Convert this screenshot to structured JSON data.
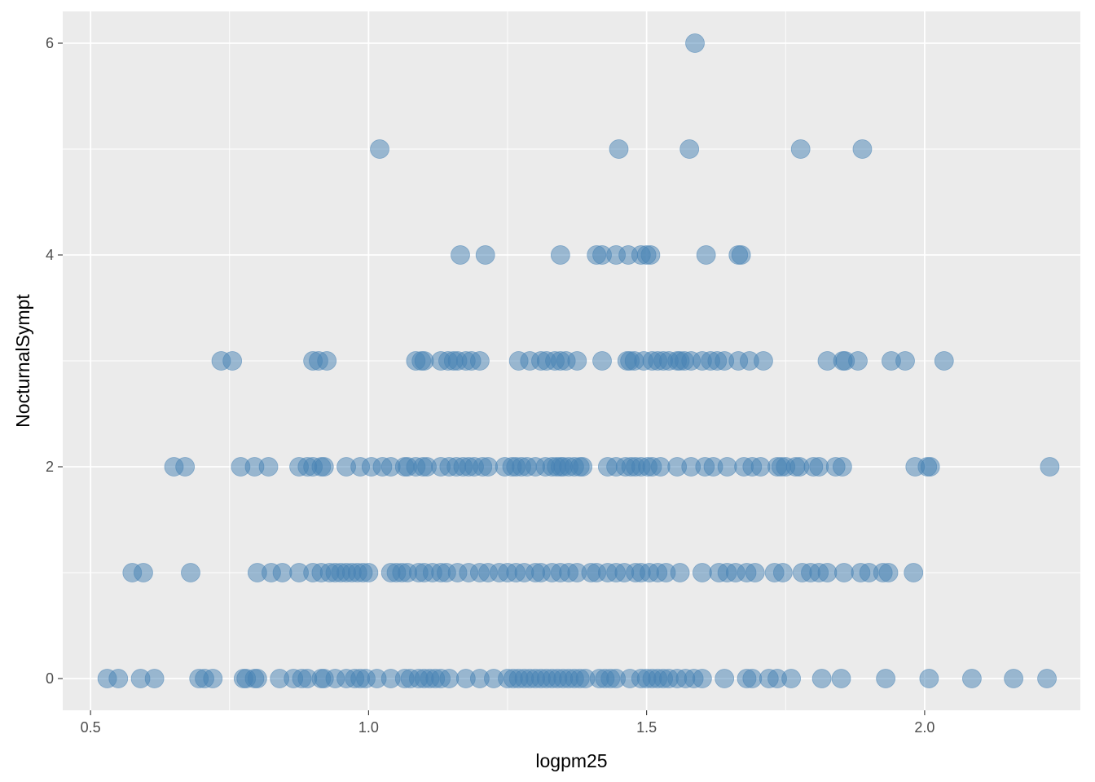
{
  "chart_data": {
    "type": "scatter",
    "title": "",
    "xlabel": "logpm25",
    "ylabel": "NocturnalSympt",
    "xlim": [
      0.45,
      2.28
    ],
    "ylim": [
      -0.3,
      6.3
    ],
    "x_ticks": [
      0.5,
      1.0,
      1.5,
      2.0
    ],
    "x_tick_labels": [
      "0.5",
      "1.0",
      "1.5",
      "2.0"
    ],
    "y_ticks": [
      0,
      2,
      4,
      6
    ],
    "y_tick_labels": [
      "0",
      "2",
      "4",
      "6"
    ],
    "grid": true,
    "legend": "none",
    "colors": {
      "panel": "#ebebeb",
      "grid": "#ffffff",
      "point_fill": "#4682b4",
      "point_opacity": 0.5,
      "axis_text": "#4d4d4d",
      "axis_title": "#000000"
    },
    "series": [
      {
        "points": [
          [
            1.587,
            6
          ],
          [
            1.02,
            5
          ],
          [
            1.45,
            5
          ],
          [
            1.577,
            5
          ],
          [
            1.777,
            5
          ],
          [
            1.888,
            5
          ],
          [
            1.165,
            4
          ],
          [
            1.21,
            4
          ],
          [
            1.345,
            4
          ],
          [
            1.41,
            4
          ],
          [
            1.42,
            4
          ],
          [
            1.445,
            4
          ],
          [
            1.467,
            4
          ],
          [
            1.49,
            4
          ],
          [
            1.5,
            4
          ],
          [
            1.507,
            4
          ],
          [
            1.607,
            4
          ],
          [
            1.665,
            4
          ],
          [
            1.67,
            4
          ],
          [
            0.735,
            3
          ],
          [
            0.755,
            3
          ],
          [
            0.9,
            3
          ],
          [
            0.91,
            3
          ],
          [
            0.925,
            3
          ],
          [
            1.085,
            3
          ],
          [
            1.095,
            3
          ],
          [
            1.1,
            3
          ],
          [
            1.13,
            3
          ],
          [
            1.143,
            3
          ],
          [
            1.153,
            3
          ],
          [
            1.16,
            3
          ],
          [
            1.175,
            3
          ],
          [
            1.185,
            3
          ],
          [
            1.2,
            3
          ],
          [
            1.27,
            3
          ],
          [
            1.29,
            3
          ],
          [
            1.31,
            3
          ],
          [
            1.32,
            3
          ],
          [
            1.335,
            3
          ],
          [
            1.345,
            3
          ],
          [
            1.355,
            3
          ],
          [
            1.375,
            3
          ],
          [
            1.42,
            3
          ],
          [
            1.465,
            3
          ],
          [
            1.47,
            3
          ],
          [
            1.478,
            3
          ],
          [
            1.495,
            3
          ],
          [
            1.51,
            3
          ],
          [
            1.52,
            3
          ],
          [
            1.53,
            3
          ],
          [
            1.54,
            3
          ],
          [
            1.555,
            3
          ],
          [
            1.56,
            3
          ],
          [
            1.568,
            3
          ],
          [
            1.58,
            3
          ],
          [
            1.6,
            3
          ],
          [
            1.615,
            3
          ],
          [
            1.627,
            3
          ],
          [
            1.64,
            3
          ],
          [
            1.665,
            3
          ],
          [
            1.685,
            3
          ],
          [
            1.71,
            3
          ],
          [
            1.825,
            3
          ],
          [
            1.853,
            3
          ],
          [
            1.857,
            3
          ],
          [
            1.88,
            3
          ],
          [
            1.94,
            3
          ],
          [
            1.965,
            3
          ],
          [
            2.035,
            3
          ],
          [
            0.65,
            2
          ],
          [
            0.67,
            2
          ],
          [
            0.77,
            2
          ],
          [
            0.795,
            2
          ],
          [
            0.82,
            2
          ],
          [
            0.875,
            2
          ],
          [
            0.89,
            2
          ],
          [
            0.9,
            2
          ],
          [
            0.915,
            2
          ],
          [
            0.92,
            2
          ],
          [
            0.96,
            2
          ],
          [
            0.985,
            2
          ],
          [
            1.005,
            2
          ],
          [
            1.025,
            2
          ],
          [
            1.04,
            2
          ],
          [
            1.065,
            2
          ],
          [
            1.07,
            2
          ],
          [
            1.085,
            2
          ],
          [
            1.098,
            2
          ],
          [
            1.105,
            2
          ],
          [
            1.13,
            2
          ],
          [
            1.145,
            2
          ],
          [
            1.158,
            2
          ],
          [
            1.17,
            2
          ],
          [
            1.18,
            2
          ],
          [
            1.19,
            2
          ],
          [
            1.205,
            2
          ],
          [
            1.215,
            2
          ],
          [
            1.245,
            2
          ],
          [
            1.258,
            2
          ],
          [
            1.265,
            2
          ],
          [
            1.275,
            2
          ],
          [
            1.285,
            2
          ],
          [
            1.3,
            2
          ],
          [
            1.318,
            2
          ],
          [
            1.33,
            2
          ],
          [
            1.338,
            2
          ],
          [
            1.345,
            2
          ],
          [
            1.35,
            2
          ],
          [
            1.36,
            2
          ],
          [
            1.37,
            2
          ],
          [
            1.38,
            2
          ],
          [
            1.385,
            2
          ],
          [
            1.43,
            2
          ],
          [
            1.445,
            2
          ],
          [
            1.462,
            2
          ],
          [
            1.472,
            2
          ],
          [
            1.48,
            2
          ],
          [
            1.49,
            2
          ],
          [
            1.502,
            2
          ],
          [
            1.51,
            2
          ],
          [
            1.525,
            2
          ],
          [
            1.555,
            2
          ],
          [
            1.58,
            2
          ],
          [
            1.605,
            2
          ],
          [
            1.62,
            2
          ],
          [
            1.645,
            2
          ],
          [
            1.675,
            2
          ],
          [
            1.69,
            2
          ],
          [
            1.705,
            2
          ],
          [
            1.735,
            2
          ],
          [
            1.742,
            2
          ],
          [
            1.75,
            2
          ],
          [
            1.768,
            2
          ],
          [
            1.775,
            2
          ],
          [
            1.8,
            2
          ],
          [
            1.81,
            2
          ],
          [
            1.84,
            2
          ],
          [
            1.852,
            2
          ],
          [
            1.983,
            2
          ],
          [
            2.005,
            2
          ],
          [
            2.01,
            2
          ],
          [
            2.225,
            2
          ],
          [
            0.575,
            1
          ],
          [
            0.595,
            1
          ],
          [
            0.68,
            1
          ],
          [
            0.8,
            1
          ],
          [
            0.825,
            1
          ],
          [
            0.845,
            1
          ],
          [
            0.875,
            1
          ],
          [
            0.9,
            1
          ],
          [
            0.915,
            1
          ],
          [
            0.93,
            1
          ],
          [
            0.94,
            1
          ],
          [
            0.95,
            1
          ],
          [
            0.96,
            1
          ],
          [
            0.97,
            1
          ],
          [
            0.98,
            1
          ],
          [
            0.99,
            1
          ],
          [
            1.0,
            1
          ],
          [
            1.04,
            1
          ],
          [
            1.05,
            1
          ],
          [
            1.06,
            1
          ],
          [
            1.07,
            1
          ],
          [
            1.09,
            1
          ],
          [
            1.1,
            1
          ],
          [
            1.115,
            1
          ],
          [
            1.13,
            1
          ],
          [
            1.14,
            1
          ],
          [
            1.16,
            1
          ],
          [
            1.18,
            1
          ],
          [
            1.2,
            1
          ],
          [
            1.215,
            1
          ],
          [
            1.235,
            1
          ],
          [
            1.25,
            1
          ],
          [
            1.265,
            1
          ],
          [
            1.28,
            1
          ],
          [
            1.3,
            1
          ],
          [
            1.31,
            1
          ],
          [
            1.33,
            1
          ],
          [
            1.345,
            1
          ],
          [
            1.36,
            1
          ],
          [
            1.375,
            1
          ],
          [
            1.4,
            1
          ],
          [
            1.41,
            1
          ],
          [
            1.43,
            1
          ],
          [
            1.445,
            1
          ],
          [
            1.46,
            1
          ],
          [
            1.48,
            1
          ],
          [
            1.49,
            1
          ],
          [
            1.505,
            1
          ],
          [
            1.52,
            1
          ],
          [
            1.535,
            1
          ],
          [
            1.56,
            1
          ],
          [
            1.6,
            1
          ],
          [
            1.63,
            1
          ],
          [
            1.645,
            1
          ],
          [
            1.66,
            1
          ],
          [
            1.68,
            1
          ],
          [
            1.695,
            1
          ],
          [
            1.73,
            1
          ],
          [
            1.745,
            1
          ],
          [
            1.78,
            1
          ],
          [
            1.795,
            1
          ],
          [
            1.81,
            1
          ],
          [
            1.825,
            1
          ],
          [
            1.855,
            1
          ],
          [
            1.885,
            1
          ],
          [
            1.9,
            1
          ],
          [
            1.925,
            1
          ],
          [
            1.935,
            1
          ],
          [
            1.98,
            1
          ],
          [
            0.53,
            0
          ],
          [
            0.55,
            0
          ],
          [
            0.59,
            0
          ],
          [
            0.615,
            0
          ],
          [
            0.695,
            0
          ],
          [
            0.705,
            0
          ],
          [
            0.72,
            0
          ],
          [
            0.775,
            0
          ],
          [
            0.78,
            0
          ],
          [
            0.795,
            0
          ],
          [
            0.8,
            0
          ],
          [
            0.84,
            0
          ],
          [
            0.865,
            0
          ],
          [
            0.88,
            0
          ],
          [
            0.89,
            0
          ],
          [
            0.915,
            0
          ],
          [
            0.92,
            0
          ],
          [
            0.94,
            0
          ],
          [
            0.96,
            0
          ],
          [
            0.975,
            0
          ],
          [
            0.985,
            0
          ],
          [
            0.995,
            0
          ],
          [
            1.015,
            0
          ],
          [
            1.04,
            0
          ],
          [
            1.065,
            0
          ],
          [
            1.075,
            0
          ],
          [
            1.09,
            0
          ],
          [
            1.1,
            0
          ],
          [
            1.11,
            0
          ],
          [
            1.12,
            0
          ],
          [
            1.13,
            0
          ],
          [
            1.145,
            0
          ],
          [
            1.175,
            0
          ],
          [
            1.2,
            0
          ],
          [
            1.225,
            0
          ],
          [
            1.25,
            0
          ],
          [
            1.26,
            0
          ],
          [
            1.27,
            0
          ],
          [
            1.28,
            0
          ],
          [
            1.29,
            0
          ],
          [
            1.3,
            0
          ],
          [
            1.31,
            0
          ],
          [
            1.32,
            0
          ],
          [
            1.33,
            0
          ],
          [
            1.34,
            0
          ],
          [
            1.35,
            0
          ],
          [
            1.36,
            0
          ],
          [
            1.37,
            0
          ],
          [
            1.38,
            0
          ],
          [
            1.39,
            0
          ],
          [
            1.415,
            0
          ],
          [
            1.425,
            0
          ],
          [
            1.435,
            0
          ],
          [
            1.445,
            0
          ],
          [
            1.47,
            0
          ],
          [
            1.49,
            0
          ],
          [
            1.5,
            0
          ],
          [
            1.51,
            0
          ],
          [
            1.52,
            0
          ],
          [
            1.53,
            0
          ],
          [
            1.54,
            0
          ],
          [
            1.555,
            0
          ],
          [
            1.57,
            0
          ],
          [
            1.585,
            0
          ],
          [
            1.6,
            0
          ],
          [
            1.64,
            0
          ],
          [
            1.68,
            0
          ],
          [
            1.69,
            0
          ],
          [
            1.72,
            0
          ],
          [
            1.735,
            0
          ],
          [
            1.76,
            0
          ],
          [
            1.815,
            0
          ],
          [
            1.85,
            0
          ],
          [
            1.93,
            0
          ],
          [
            2.008,
            0
          ],
          [
            2.085,
            0
          ],
          [
            2.16,
            0
          ],
          [
            2.22,
            0
          ]
        ]
      }
    ]
  }
}
